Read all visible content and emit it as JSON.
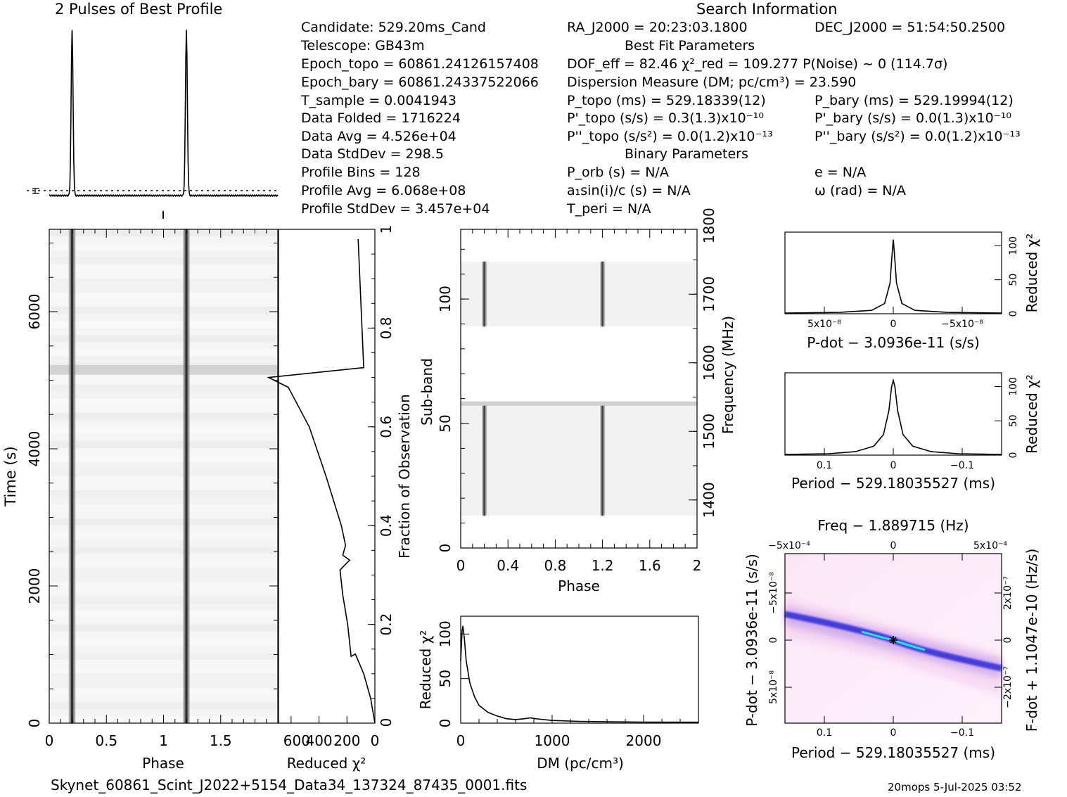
{
  "header": {
    "profile_title": "2 Pulses of Best Profile",
    "search_title": "Search Information"
  },
  "info": {
    "col1": [
      "Candidate:  529.20ms_Cand",
      "Telescope:  GB43m",
      "Epoch_topo = 60861.24126157408",
      "Epoch_bary = 60861.24337522066",
      "T_sample    =  0.0041943",
      "Data Folded   =  1716224",
      "Data Avg      =  4.526e+04",
      "Data StdDev   =  298.5",
      "Profile Bins  =  128",
      "Profile Avg   =  6.068e+08",
      "Profile StdDev =  3.457e+04"
    ],
    "col2": [
      "RA_J2000 = 20:23:03.1800",
      "Best Fit Parameters",
      "DOF_eff = 82.46  χ²_red = 109.277  P(Noise) ~ 0   (114.7σ)",
      "Dispersion Measure (DM; pc/cm³) = 23.590",
      "P_topo (ms) =  529.18339(12)",
      "P'_topo (s/s) =  0.3(1.3)x10⁻¹⁰",
      "P''_topo (s/s²) = 0.0(1.2)x10⁻¹³",
      "Binary Parameters",
      "P_orb (s) = N/A",
      "a₁sin(i)/c (s) = N/A",
      "T_peri = N/A"
    ],
    "col3": [
      "DEC_J2000 = 51:54:50.2500",
      "P_bary (ms) =  529.19994(12)",
      "P'_bary (s/s) = 0.0(1.3)x10⁻¹⁰",
      "P''_bary (s/s²) = 0.0(1.2)x10⁻¹³",
      "e = N/A",
      "ω (rad) = N/A"
    ]
  },
  "footer": {
    "filename": "Skynet_60861_Scint_J2022+5154_Data34_137324_87435_0001.fits",
    "stamp": "20mops   5-Jul-2025 03:52"
  },
  "chart_data": [
    {
      "id": "profile",
      "type": "line",
      "title": "2 Pulses of Best Profile",
      "x": [
        0.0,
        0.12,
        0.17,
        0.19,
        0.2,
        0.21,
        0.23,
        0.28,
        0.6,
        1.0,
        1.12,
        1.17,
        1.19,
        1.2,
        1.21,
        1.23,
        1.28,
        1.6,
        2.0
      ],
      "y": [
        0.0,
        0.0,
        0.05,
        0.6,
        1.0,
        0.6,
        0.05,
        0.0,
        0.0,
        0.0,
        0.0,
        0.05,
        0.6,
        1.0,
        0.6,
        0.05,
        0.0,
        0.0,
        0.0
      ]
    },
    {
      "id": "time_phase",
      "type": "heatmap",
      "xlabel": "Phase",
      "ylabel": "Time (s)",
      "xlim": [
        0,
        2
      ],
      "ylim": [
        0,
        7200
      ],
      "x_ticks": [
        "0",
        "0.5",
        "1",
        "1.5"
      ],
      "y_ticks": [
        "0",
        "2000",
        "4000",
        "6000"
      ],
      "pulse_phases": [
        0.2,
        1.2
      ],
      "rfi_time": 5150
    },
    {
      "id": "time_chi2",
      "type": "line",
      "xlabel": "Reduced χ²",
      "ylabel": "Fraction of Observation",
      "xlim": [
        0,
        800
      ],
      "ylim": [
        0,
        1
      ],
      "x_ticks": [
        "600",
        "400",
        "200",
        "0"
      ],
      "y_ticks": [
        "0.2",
        "0.4",
        "0.6",
        "0.8",
        "1"
      ],
      "points": [
        [
          0,
          0.0
        ],
        [
          30,
          0.05
        ],
        [
          80,
          0.1
        ],
        [
          140,
          0.14
        ],
        [
          170,
          0.135
        ],
        [
          195,
          0.2
        ],
        [
          230,
          0.26
        ],
        [
          250,
          0.31
        ],
        [
          200,
          0.325
        ],
        [
          180,
          0.33
        ],
        [
          230,
          0.34
        ],
        [
          210,
          0.36
        ],
        [
          240,
          0.4
        ],
        [
          350,
          0.5
        ],
        [
          470,
          0.6
        ],
        [
          620,
          0.68
        ],
        [
          760,
          0.7
        ],
        [
          80,
          0.72
        ],
        [
          120,
          0.98
        ]
      ]
    },
    {
      "id": "subband_phase",
      "type": "heatmap",
      "xlabel": "Phase",
      "ylabel": "Sub-band",
      "y2label": "Frequency (MHz)",
      "xlim": [
        0,
        2
      ],
      "ylim": [
        0,
        128
      ],
      "y2lim": [
        1330,
        1810
      ],
      "x_ticks": [
        "0",
        "0.4",
        "0.8",
        "1.2",
        "1.6",
        "2"
      ],
      "y_ticks": [
        "0",
        "50",
        "100"
      ],
      "y2_ticks": [
        "1400",
        "1500",
        "1600",
        "1700",
        "1800"
      ],
      "pulse_phases": [
        0.2,
        1.2
      ],
      "band_rows": [
        [
          13,
          58
        ],
        [
          89,
          115
        ]
      ],
      "rfi_row": 58
    },
    {
      "id": "dm_chi2",
      "type": "line",
      "xlabel": "DM (pc/cm³)",
      "ylabel": "Reduced χ²",
      "xlim": [
        0,
        2600
      ],
      "ylim": [
        0,
        120
      ],
      "x_ticks": [
        "0",
        "1000",
        "2000"
      ],
      "y_ticks": [
        "0",
        "50",
        "100"
      ],
      "points": [
        [
          0,
          70
        ],
        [
          15,
          104
        ],
        [
          24,
          109
        ],
        [
          40,
          95
        ],
        [
          60,
          70
        ],
        [
          100,
          45
        ],
        [
          150,
          30
        ],
        [
          200,
          20
        ],
        [
          300,
          12
        ],
        [
          400,
          8
        ],
        [
          500,
          5
        ],
        [
          600,
          4
        ],
        [
          700,
          5
        ],
        [
          760,
          6
        ],
        [
          820,
          5
        ],
        [
          1000,
          3
        ],
        [
          1300,
          2
        ],
        [
          1600,
          1.5
        ],
        [
          2000,
          1.2
        ],
        [
          2600,
          1
        ]
      ]
    },
    {
      "id": "pdot_chi2",
      "type": "line",
      "xlabel": "P-dot − 3.0936e-11 (s/s)",
      "ylabel": "Reduced χ²",
      "x_ticks": [
        "5x10⁻⁸",
        "0",
        "−5x10⁻⁸"
      ],
      "y_ticks": [
        "0",
        "50",
        "100"
      ],
      "ylim": [
        0,
        120
      ],
      "points": [
        [
          -1.0,
          1
        ],
        [
          -0.5,
          2
        ],
        [
          -0.2,
          5
        ],
        [
          -0.08,
          15
        ],
        [
          -0.03,
          45
        ],
        [
          -0.01,
          90
        ],
        [
          0,
          109
        ],
        [
          0.01,
          90
        ],
        [
          0.03,
          45
        ],
        [
          0.08,
          15
        ],
        [
          0.2,
          5
        ],
        [
          0.5,
          2
        ],
        [
          1.0,
          1
        ]
      ]
    },
    {
      "id": "period_chi2",
      "type": "line",
      "xlabel": "Period − 529.18035527 (ms)",
      "ylabel": "Reduced χ²",
      "x_ticks": [
        "0.1",
        "0",
        "−0.1"
      ],
      "y_ticks": [
        "0",
        "50",
        "100"
      ],
      "ylim": [
        0,
        120
      ],
      "points": [
        [
          -1.0,
          1
        ],
        [
          -0.6,
          2
        ],
        [
          -0.35,
          5
        ],
        [
          -0.18,
          13
        ],
        [
          -0.09,
          30
        ],
        [
          -0.04,
          65
        ],
        [
          -0.015,
          100
        ],
        [
          0,
          109
        ],
        [
          0.015,
          100
        ],
        [
          0.04,
          65
        ],
        [
          0.09,
          30
        ],
        [
          0.18,
          13
        ],
        [
          0.35,
          5
        ],
        [
          0.6,
          2
        ],
        [
          1.0,
          1
        ]
      ]
    },
    {
      "id": "p_pdot",
      "type": "heatmap",
      "title": "Freq − 1.889715 (Hz)",
      "xlabel": "Period − 529.18035527 (ms)",
      "ylabel": "P-dot − 3.0936e-11 (s/s)",
      "y2label": "F-dot + 1.1047e-10 (Hz/s)",
      "x_ticks": [
        "0.1",
        "0",
        "−0.1"
      ],
      "x2_ticks": [
        "−5x10⁻⁴",
        "0",
        "5x10⁻⁴"
      ],
      "y_ticks": [
        "−5x10⁻⁸",
        "0",
        "5x10⁻⁸"
      ],
      "y2_ticks": [
        "2x10⁻⁷",
        "0",
        "−2x10⁻⁷"
      ]
    }
  ]
}
